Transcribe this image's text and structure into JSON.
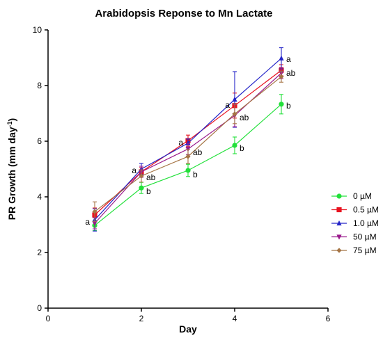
{
  "chart_data": {
    "type": "line",
    "title": "Arabidopsis Reponse to Mn Lactate",
    "xlabel": "Day",
    "ylabel_main": "PR Growth (mm day",
    "ylabel_sup": "-1",
    "ylabel_close": ")",
    "xlim": [
      0,
      6
    ],
    "ylim": [
      0,
      10
    ],
    "xticks": [
      0,
      2,
      4,
      6
    ],
    "yticks": [
      0,
      2,
      4,
      6,
      8,
      10
    ],
    "grid": false,
    "legend_position": "right",
    "x": [
      1,
      2,
      3,
      4,
      5
    ],
    "series": [
      {
        "name": "0 µM",
        "color": "#22e03a",
        "marker": "circle",
        "values": [
          2.97,
          4.32,
          4.95,
          5.85,
          7.33
        ],
        "errors": [
          0.18,
          0.2,
          0.22,
          0.3,
          0.35
        ]
      },
      {
        "name": "0.5 µM",
        "color": "#e8121f",
        "marker": "square",
        "values": [
          3.35,
          4.9,
          6.02,
          7.28,
          8.55
        ],
        "errors": [
          0.25,
          0.15,
          0.2,
          0.45,
          0.2
        ]
      },
      {
        "name": "1.0 µM",
        "color": "#2424c8",
        "marker": "triangle-up",
        "values": [
          3.17,
          5.0,
          5.93,
          7.5,
          8.98
        ],
        "errors": [
          0.4,
          0.2,
          0.15,
          1.0,
          0.38
        ]
      },
      {
        "name": "50 µM",
        "color": "#9a1a8c",
        "marker": "triangle-down",
        "values": [
          3.05,
          4.9,
          5.72,
          6.92,
          8.45
        ],
        "errors": [
          0.2,
          0.2,
          0.2,
          0.4,
          0.2
        ]
      },
      {
        "name": "75 µM",
        "color": "#a57444",
        "marker": "diamond",
        "values": [
          3.47,
          4.75,
          5.45,
          6.98,
          8.32
        ],
        "errors": [
          0.35,
          0.22,
          0.25,
          0.35,
          0.2
        ]
      }
    ],
    "annotations": [
      {
        "text": "a",
        "x": 1,
        "y": 3.1,
        "side": "left"
      },
      {
        "text": "a",
        "x": 2,
        "y": 4.95,
        "side": "left"
      },
      {
        "text": "ab",
        "x": 2,
        "y": 4.7,
        "side": "right"
      },
      {
        "text": "b",
        "x": 2,
        "y": 4.2,
        "side": "right"
      },
      {
        "text": "a",
        "x": 3,
        "y": 5.95,
        "side": "left"
      },
      {
        "text": "ab",
        "x": 3,
        "y": 5.6,
        "side": "right"
      },
      {
        "text": "b",
        "x": 3,
        "y": 4.8,
        "side": "right"
      },
      {
        "text": "a",
        "x": 4,
        "y": 7.3,
        "side": "left"
      },
      {
        "text": "ab",
        "x": 4,
        "y": 6.85,
        "side": "right"
      },
      {
        "text": "b",
        "x": 4,
        "y": 5.75,
        "side": "right"
      },
      {
        "text": "a",
        "x": 5,
        "y": 8.95,
        "side": "right"
      },
      {
        "text": "ab",
        "x": 5,
        "y": 8.45,
        "side": "right"
      },
      {
        "text": "b",
        "x": 5,
        "y": 7.28,
        "side": "right"
      }
    ]
  }
}
